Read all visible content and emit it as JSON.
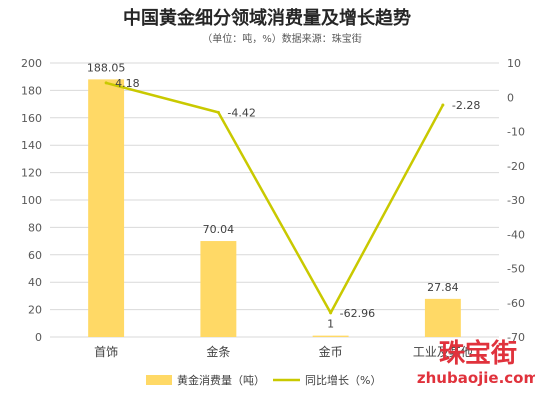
{
  "chart_data": {
    "type": "bar",
    "title": "中国黄金细分领域消费量及增长趋势",
    "subtitle": "（单位：吨，%）数据来源：珠宝街",
    "categories": [
      "首饰",
      "金条",
      "金币",
      "工业及其他"
    ],
    "series": [
      {
        "name": "黄金消费量（吨）",
        "type": "bar",
        "axis": "left",
        "color": "#ffd966",
        "values": [
          188.05,
          70.04,
          1,
          27.84
        ],
        "labels": [
          "188.05",
          "70.04",
          "1",
          "27.84"
        ]
      },
      {
        "name": "同比增长（%）",
        "type": "line",
        "axis": "right",
        "color": "#c9c900",
        "values": [
          4.18,
          -4.42,
          -62.96,
          -2.28
        ],
        "labels": [
          "4.18",
          "-4.42",
          "-62.96",
          "-2.28"
        ]
      }
    ],
    "y_left": {
      "min": 0,
      "max": 200,
      "step": 20,
      "ticks": [
        "0",
        "20",
        "40",
        "60",
        "80",
        "100",
        "120",
        "140",
        "160",
        "180",
        "200"
      ]
    },
    "y_right": {
      "min": -70,
      "max": 10,
      "step": 10,
      "ticks": [
        "-70",
        "-60",
        "-50",
        "-40",
        "-30",
        "-20",
        "-10",
        "0",
        "10"
      ]
    },
    "grid": true,
    "legend_position": "bottom"
  },
  "watermark": {
    "chinese": "珠宝街",
    "latin": "zhubaojie.com",
    "color": "#e0323c"
  }
}
